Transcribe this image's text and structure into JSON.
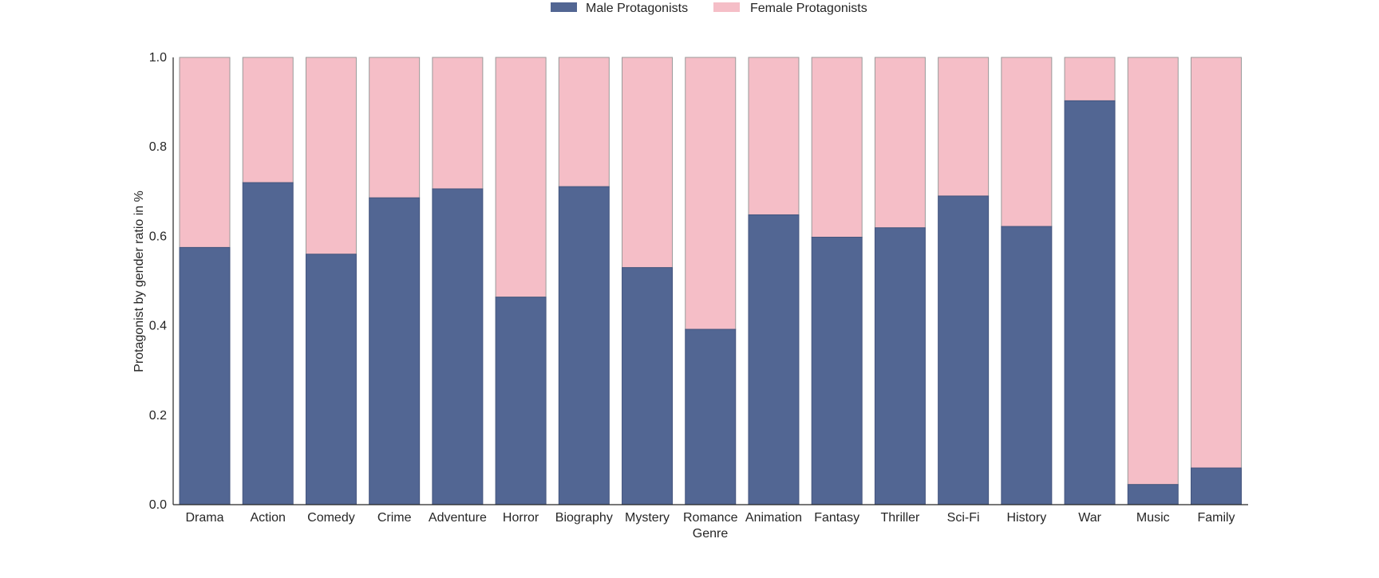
{
  "colors": {
    "male": "#526693",
    "female": "#f5bec7",
    "bar_edge": "#9a9a9a",
    "axis": "#262626"
  },
  "legend": {
    "male_label": "Male Protagonists",
    "female_label": "Female Protagonists"
  },
  "chart_data": {
    "type": "bar",
    "stacked": true,
    "xlabel": "Genre",
    "ylabel": "Protagonist by gender ratio in %",
    "ylim": [
      0,
      1.0
    ],
    "yticks": [
      "0.0",
      "0.2",
      "0.4",
      "0.6",
      "0.8",
      "1.0"
    ],
    "grid": false,
    "legend_position": "top-center",
    "categories": [
      "Drama",
      "Action",
      "Comedy",
      "Crime",
      "Adventure",
      "Horror",
      "Biography",
      "Mystery",
      "Romance",
      "Animation",
      "Fantasy",
      "Thriller",
      "Sci-Fi",
      "History",
      "War",
      "Music",
      "Family"
    ],
    "series": [
      {
        "name": "Male Protagonists",
        "values": [
          0.575,
          0.72,
          0.56,
          0.686,
          0.706,
          0.464,
          0.711,
          0.53,
          0.392,
          0.648,
          0.598,
          0.619,
          0.69,
          0.622,
          0.903,
          0.045,
          0.082
        ]
      },
      {
        "name": "Female Protagonists",
        "values": [
          0.425,
          0.28,
          0.44,
          0.314,
          0.294,
          0.536,
          0.289,
          0.47,
          0.608,
          0.352,
          0.402,
          0.381,
          0.31,
          0.378,
          0.097,
          0.955,
          0.918
        ]
      }
    ]
  }
}
